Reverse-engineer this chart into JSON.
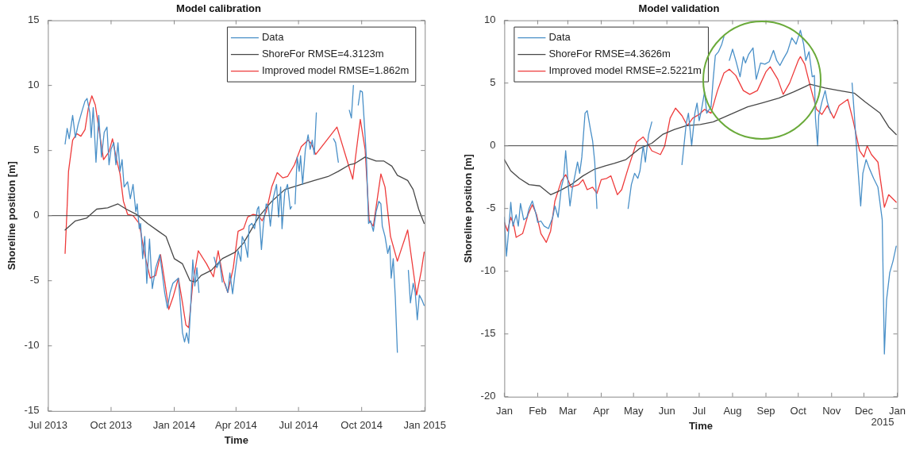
{
  "chart_data": [
    {
      "type": "line",
      "title": "Model calibration",
      "xlabel": "Time",
      "ylabel": "Shoreline position [m]",
      "xlim": [
        "2013-07-01",
        "2015-01-01"
      ],
      "xticks": [
        {
          "value": "2013-07-01",
          "label": "Jul 2013"
        },
        {
          "value": "2013-10-01",
          "label": "Oct 2013"
        },
        {
          "value": "2014-01-01",
          "label": "Jan 2014"
        },
        {
          "value": "2014-04-01",
          "label": "Apr 2014"
        },
        {
          "value": "2014-07-01",
          "label": "Jul 2014"
        },
        {
          "value": "2014-10-01",
          "label": "Oct 2014"
        },
        {
          "value": "2015-01-01",
          "label": "Jan 2015"
        }
      ],
      "ylim": [
        -15,
        15
      ],
      "yticks": [
        -15,
        -10,
        -5,
        0,
        5,
        10,
        15
      ],
      "legend": "top right",
      "ref_lines": [
        {
          "axis": "y",
          "value": 0,
          "color": "#404040"
        }
      ],
      "series": [
        {
          "name": "Data",
          "color": "#4a90c8",
          "x": [
            "2013-07-26",
            "2013-07-29",
            "2013-08-01",
            "2013-08-06",
            "2013-08-10",
            "2013-08-14",
            "2013-08-20",
            "2013-08-24",
            "2013-08-27",
            "2013-08-31",
            "2013-09-02",
            "2013-09-05",
            "2013-09-09",
            "2013-09-13",
            "2013-09-17",
            "2013-09-21",
            "2013-09-25",
            "2013-09-28",
            "2013-10-01",
            "2013-10-05",
            "2013-10-08",
            "2013-10-11",
            "2013-10-14",
            "2013-10-17",
            "2013-10-20",
            "2013-10-25",
            "2013-10-29",
            "2013-11-02",
            "2013-11-06",
            "2013-11-08",
            "2013-11-11",
            "2013-11-13",
            "2013-11-16",
            "2013-11-19",
            "2013-11-22",
            "2013-11-26",
            "2013-11-30",
            "2013-12-05",
            "2013-12-11",
            "2013-12-14",
            "2013-12-18",
            "2013-12-22",
            "2013-12-26",
            "2013-12-30",
            "2014-01-03",
            "2014-01-07",
            "2014-01-10",
            "2014-01-13",
            "2014-01-16",
            "2014-01-19",
            "2014-01-22",
            "2014-01-25",
            "2014-01-28",
            "2014-01-31",
            "2014-02-03",
            "2014-02-06",
            "2014-02-12",
            "2014-02-28",
            "2014-03-04",
            "2014-03-08",
            "2014-03-12",
            "2014-03-13",
            "2014-03-16",
            "2014-03-20",
            "2014-03-23",
            "2014-03-27",
            "2014-03-31",
            "2014-04-04",
            "2014-04-08",
            "2014-04-10",
            "2014-04-14",
            "2014-04-18",
            "2014-04-20",
            "2014-04-24",
            "2014-04-28",
            "2014-05-02",
            "2014-05-04",
            "2014-05-08",
            "2014-05-11",
            "2014-05-15",
            "2014-05-18",
            "2014-05-21",
            "2014-05-25",
            "2014-05-30",
            "2014-06-02",
            "2014-06-05",
            "2014-06-07",
            "2014-06-11",
            "2014-06-15",
            "2014-06-19",
            "2014-06-21",
            "2014-06-23",
            "2014-06-26",
            "2014-06-29",
            "2014-07-02",
            "2014-07-04",
            "2014-07-07",
            "2014-07-11",
            "2014-07-15",
            "2014-07-18",
            "2014-07-21",
            "2014-07-24",
            "2014-07-27",
            "2014-08-10",
            "2014-08-21",
            "2014-08-24",
            "2014-08-28",
            "2014-09-05",
            "2014-09-13",
            "2014-09-16",
            "2014-09-19",
            "2014-09-22",
            "2014-09-26",
            "2014-09-29",
            "2014-10-02",
            "2014-10-05",
            "2014-10-08",
            "2014-10-11",
            "2014-10-14",
            "2014-10-18",
            "2014-10-22",
            "2014-10-26",
            "2014-10-29",
            "2014-10-31",
            "2014-11-04",
            "2014-11-08",
            "2014-11-11",
            "2014-11-13",
            "2014-11-16",
            "2014-11-19",
            "2014-11-22",
            "2014-11-28",
            "2014-12-08",
            "2014-12-11",
            "2014-12-15",
            "2014-12-18",
            "2014-12-21",
            "2014-12-24",
            "2014-12-28",
            "2014-12-31"
          ],
          "values": [
            5.5,
            6.7,
            5.9,
            7.7,
            6.0,
            7.0,
            8.1,
            8.8,
            9.0,
            7.9,
            6.0,
            8.3,
            4.1,
            7.7,
            4.5,
            6.4,
            6.8,
            3.9,
            5.1,
            5.6,
            3.9,
            5.6,
            3.4,
            4.3,
            2.2,
            2.6,
            1.3,
            2.4,
            0.3,
            0.9,
            -1.0,
            -0.6,
            -3.3,
            -1.6,
            -5.2,
            -1.8,
            -5.6,
            -4.0,
            -3.0,
            -4.2,
            -5.9,
            -7.1,
            -5.9,
            -5.2,
            -5.0,
            -4.8,
            -6.9,
            -9.0,
            -9.7,
            -9.0,
            -9.8,
            -6.9,
            -3.4,
            -5.4,
            -4.0,
            -5.9,
            null,
            -3.2,
            -4.0,
            -3.5,
            -5.1,
            null,
            -5.2,
            -5.9,
            -4.4,
            -6.0,
            -4.2,
            -2.7,
            -3.5,
            -1.6,
            -2.1,
            -3.2,
            -0.8,
            -0.6,
            -1.0,
            0.5,
            0.7,
            -2.6,
            -0.6,
            0.9,
            0.7,
            -0.8,
            1.3,
            2.4,
            -0.1,
            2.2,
            -1.0,
            1.8,
            2.4,
            0.5,
            0.7,
            null,
            0.9,
            4.5,
            3.4,
            4.6,
            2.4,
            5.1,
            6.2,
            5.1,
            5.8,
            4.7,
            7.9,
            null,
            5.9,
            5.6,
            4.1,
            null,
            8.1,
            7.5,
            10.0,
            null,
            8.5,
            9.6,
            9.5,
            7.0,
            4.3,
            -0.6,
            -0.4,
            -1.2,
            0.3,
            1.1,
            0.9,
            -0.8,
            -1.6,
            -2.9,
            -2.3,
            -4.8,
            -3.3,
            -6.3,
            -10.5,
            null,
            -4.2,
            -6.7,
            -5.2,
            -5.9,
            -8.0,
            -6.1,
            -6.5,
            -6.9
          ]
        },
        {
          "name": "ShoreFor RMSE=4.3123m",
          "color": "#484848",
          "x": [
            "2013-07-26",
            "2013-08-10",
            "2013-08-26",
            "2013-09-10",
            "2013-09-26",
            "2013-10-11",
            "2013-10-23",
            "2013-11-07",
            "2013-11-23",
            "2013-12-09",
            "2013-12-20",
            "2014-01-01",
            "2014-01-13",
            "2014-01-24",
            "2014-02-01",
            "2014-02-09",
            "2014-02-24",
            "2014-03-12",
            "2014-03-31",
            "2014-04-12",
            "2014-05-04",
            "2014-05-23",
            "2014-06-11",
            "2014-07-05",
            "2014-07-24",
            "2014-08-13",
            "2014-08-28",
            "2014-09-13",
            "2014-09-21",
            "2014-10-06",
            "2014-10-22",
            "2014-11-02",
            "2014-11-14",
            "2014-11-22",
            "2014-12-07",
            "2014-12-15",
            "2014-12-23",
            "2014-12-31"
          ],
          "values": [
            -1.1,
            -0.4,
            -0.2,
            0.5,
            0.6,
            0.9,
            0.5,
            0.1,
            -0.6,
            -1.2,
            -1.6,
            -3.3,
            -3.7,
            -5.0,
            -5.1,
            -4.6,
            -4.2,
            -3.3,
            -2.8,
            -2.1,
            -0.1,
            1.1,
            2.0,
            2.4,
            2.7,
            3.0,
            3.4,
            3.9,
            4.0,
            4.5,
            4.2,
            4.2,
            3.8,
            3.1,
            2.7,
            2.0,
            0.5,
            -0.6
          ]
        },
        {
          "name": "Improved model RMSE=1.862m",
          "color": "#ee3b3b",
          "x": [
            "2013-07-26",
            "2013-07-29",
            "2013-07-31",
            "2013-08-06",
            "2013-08-12",
            "2013-08-18",
            "2013-08-24",
            "2013-08-29",
            "2013-09-03",
            "2013-09-08",
            "2013-09-14",
            "2013-09-20",
            "2013-09-28",
            "2013-10-03",
            "2013-10-09",
            "2013-10-14",
            "2013-10-19",
            "2013-10-25",
            "2013-11-02",
            "2013-11-11",
            "2013-11-19",
            "2013-11-27",
            "2013-12-05",
            "2013-12-12",
            "2013-12-18",
            "2013-12-24",
            "2013-12-30",
            "2014-01-07",
            "2014-01-13",
            "2014-01-18",
            "2014-01-22",
            "2014-01-28",
            "2014-02-05",
            "2014-02-17",
            "2014-02-27",
            "2014-03-06",
            "2014-03-14",
            "2014-03-20",
            "2014-03-28",
            "2014-04-04",
            "2014-04-12",
            "2014-04-18",
            "2014-04-26",
            "2014-05-04",
            "2014-05-09",
            "2014-05-15",
            "2014-05-23",
            "2014-05-31",
            "2014-06-08",
            "2014-06-15",
            "2014-06-25",
            "2014-07-05",
            "2014-07-15",
            "2014-07-20",
            "2014-07-26",
            "2014-08-26",
            "2014-09-18",
            "2014-09-29",
            "2014-10-06",
            "2014-10-12",
            "2014-10-18",
            "2014-10-29",
            "2014-11-04",
            "2014-11-12",
            "2014-11-22",
            "2014-12-07",
            "2014-12-20",
            "2014-12-27",
            "2014-12-31"
          ],
          "values": [
            -2.9,
            0.7,
            3.4,
            5.8,
            6.3,
            6.1,
            6.6,
            8.3,
            9.2,
            8.5,
            6.4,
            4.3,
            4.9,
            5.9,
            4.3,
            3.2,
            1.1,
            0.1,
            0,
            -0.6,
            -3.0,
            -4.8,
            -4.6,
            -3.0,
            -5.0,
            -7.2,
            -6.3,
            -4.8,
            -6.7,
            -8.4,
            -8.6,
            -5.2,
            -2.7,
            -3.7,
            -4.7,
            -2.7,
            -5.0,
            -5.9,
            -4.0,
            -1.2,
            -1.0,
            -0.1,
            0.1,
            0,
            -0.4,
            0.3,
            2.2,
            3.3,
            2.9,
            3.0,
            3.9,
            5.3,
            5.8,
            5.5,
            4.7,
            6.8,
            2.8,
            7.4,
            5.1,
            -0.4,
            -0.8,
            3.2,
            2.2,
            -1.6,
            -3.5,
            -1.1,
            -6.1,
            -4.2,
            -2.8
          ]
        }
      ]
    },
    {
      "type": "line",
      "title": "Model validation",
      "xlabel": "Time",
      "ylabel": "Shoreline position [m]",
      "xlim": [
        "2015-01-01",
        "2016-01-01"
      ],
      "xticks": [
        {
          "value": "2015-01-01",
          "label": "Jan"
        },
        {
          "value": "2015-02-01",
          "label": "Feb"
        },
        {
          "value": "2015-03-01",
          "label": "Mar"
        },
        {
          "value": "2015-04-01",
          "label": "Apr"
        },
        {
          "value": "2015-05-01",
          "label": "May"
        },
        {
          "value": "2015-06-01",
          "label": "Jun"
        },
        {
          "value": "2015-07-01",
          "label": "Jul"
        },
        {
          "value": "2015-08-01",
          "label": "Aug"
        },
        {
          "value": "2015-09-01",
          "label": "Sep"
        },
        {
          "value": "2015-10-01",
          "label": "Oct"
        },
        {
          "value": "2015-11-01",
          "label": "Nov"
        },
        {
          "value": "2015-12-01",
          "label": "Dec"
        },
        {
          "value": "2016-01-01",
          "label": "Jan"
        }
      ],
      "ylim": [
        -20,
        10
      ],
      "yticks": [
        -20,
        -15,
        -10,
        -5,
        0,
        5,
        10
      ],
      "legend": "top left",
      "annotations": [
        "2015"
      ],
      "ref_lines": [
        {
          "axis": "y",
          "value": 0,
          "color": "#404040"
        }
      ],
      "series": [
        {
          "name": "Data",
          "color": "#4a90c8",
          "x": [
            "2015-01-01",
            "2015-01-03",
            "2015-01-05",
            "2015-01-07",
            "2015-01-09",
            "2015-01-12",
            "2015-01-14",
            "2015-01-16",
            "2015-01-19",
            "2015-01-22",
            "2015-01-24",
            "2015-01-27",
            "2015-01-30",
            "2015-02-01",
            "2015-02-04",
            "2015-02-07",
            "2015-02-11",
            "2015-02-15",
            "2015-02-17",
            "2015-02-20",
            "2015-02-23",
            "2015-02-25",
            "2015-02-27",
            "2015-02-28",
            "2015-03-02",
            "2015-03-03",
            "2015-03-05",
            "2015-03-08",
            "2015-03-10",
            "2015-03-12",
            "2015-03-14",
            "2015-03-17",
            "2015-03-19",
            "2015-03-22",
            "2015-03-24",
            "2015-03-26",
            "2015-03-28",
            "2015-04-15",
            "2015-04-26",
            "2015-04-29",
            "2015-05-02",
            "2015-05-05",
            "2015-05-07",
            "2015-05-10",
            "2015-05-12",
            "2015-05-15",
            "2015-05-18",
            "2015-06-01",
            "2015-06-15",
            "2015-06-19",
            "2015-06-21",
            "2015-06-24",
            "2015-06-27",
            "2015-06-29",
            "2015-07-01",
            "2015-07-03",
            "2015-07-06",
            "2015-07-08",
            "2015-07-12",
            "2015-07-14",
            "2015-07-16",
            "2015-07-19",
            "2015-07-22",
            "2015-07-24",
            "2015-07-26",
            "2015-07-29",
            "2015-08-01",
            "2015-08-04",
            "2015-08-08",
            "2015-08-11",
            "2015-08-13",
            "2015-08-16",
            "2015-08-20",
            "2015-08-23",
            "2015-08-27",
            "2015-08-31",
            "2015-09-04",
            "2015-09-08",
            "2015-09-11",
            "2015-09-14",
            "2015-09-17",
            "2015-09-21",
            "2015-09-25",
            "2015-09-29",
            "2015-10-03",
            "2015-10-06",
            "2015-10-08",
            "2015-10-11",
            "2015-10-14",
            "2015-10-16",
            "2015-10-17",
            "2015-10-19",
            "2015-10-20",
            "2015-10-23",
            "2015-10-26",
            "2015-10-28",
            "2015-10-31",
            "2015-11-10",
            "2015-11-20",
            "2015-11-22",
            "2015-11-25",
            "2015-11-28",
            "2015-11-30",
            "2015-12-03",
            "2015-12-06",
            "2015-12-10",
            "2015-12-14",
            "2015-12-18",
            "2015-12-20",
            "2015-12-22",
            "2015-12-25",
            "2015-12-28",
            "2015-12-31"
          ],
          "values": [
            -5.7,
            -8.8,
            -6.8,
            -4.5,
            -6.4,
            -5.5,
            -6.4,
            -4.6,
            -5.9,
            -5.7,
            -5.0,
            -4.4,
            -5.3,
            -6.1,
            -6.0,
            -6.4,
            -6.6,
            -5.7,
            -4.8,
            -5.7,
            -3.3,
            -2.6,
            -0.4,
            -1.5,
            -3.9,
            -4.8,
            -3.5,
            -2.2,
            -1.3,
            -2.2,
            -0.9,
            2.6,
            2.8,
            1.3,
            0.4,
            -1.3,
            -5.0,
            null,
            -5.0,
            -3.1,
            -2.2,
            -2.6,
            -2.0,
            0,
            -1.3,
            0.9,
            1.9,
            null,
            -1.5,
            1.8,
            2.6,
            0,
            2.6,
            3.4,
            2.0,
            2.8,
            4.3,
            2.6,
            3.1,
            5.3,
            7.2,
            7.5,
            8.1,
            8.7,
            null,
            6.8,
            7.7,
            6.8,
            5.5,
            7.1,
            6.6,
            7.3,
            7.8,
            5.3,
            6.6,
            6.5,
            6.7,
            7.6,
            6.8,
            6.4,
            6.9,
            7.5,
            8.6,
            8.1,
            9.2,
            8.1,
            6.8,
            7.5,
            5.5,
            5.6,
            2.2,
            0,
            2.4,
            3.5,
            4.4,
            3.5,
            2.6,
            null,
            5.0,
            2.6,
            -1.3,
            -4.8,
            -2.2,
            -1.1,
            -1.8,
            -2.6,
            -3.3,
            -5.9,
            -16.6,
            -12.3,
            -10.1,
            -9.2,
            -8.0
          ]
        },
        {
          "name": "ShoreFor RMSE=4.3626m",
          "color": "#484848",
          "x": [
            "2015-01-01",
            "2015-01-07",
            "2015-01-15",
            "2015-01-24",
            "2015-02-03",
            "2015-02-13",
            "2015-02-21",
            "2015-03-04",
            "2015-03-15",
            "2015-03-25",
            "2015-04-05",
            "2015-04-13",
            "2015-04-24",
            "2015-05-07",
            "2015-05-18",
            "2015-05-28",
            "2015-06-08",
            "2015-06-19",
            "2015-07-02",
            "2015-07-14",
            "2015-07-30",
            "2015-08-15",
            "2015-08-28",
            "2015-09-13",
            "2015-09-27",
            "2015-10-12",
            "2015-10-26",
            "2015-11-08",
            "2015-11-22",
            "2015-12-02",
            "2015-12-16",
            "2015-12-24",
            "2015-12-31"
          ],
          "values": [
            -1.1,
            -2.0,
            -2.6,
            -3.1,
            -3.2,
            -3.9,
            -3.6,
            -3.1,
            -2.4,
            -1.9,
            -1.6,
            -1.4,
            -1.1,
            -0.2,
            0.2,
            0.9,
            1.3,
            1.6,
            1.7,
            1.9,
            2.5,
            3.1,
            3.4,
            3.8,
            4.3,
            4.9,
            4.6,
            4.4,
            4.2,
            3.5,
            2.6,
            1.5,
            0.9
          ]
        },
        {
          "name": "Improved model RMSE=2.5221m",
          "color": "#ee3b3b",
          "x": [
            "2015-01-01",
            "2015-01-04",
            "2015-01-07",
            "2015-01-10",
            "2015-01-12",
            "2015-01-18",
            "2015-01-23",
            "2015-01-27",
            "2015-01-31",
            "2015-02-04",
            "2015-02-09",
            "2015-02-13",
            "2015-02-17",
            "2015-02-23",
            "2015-02-27",
            "2015-03-04",
            "2015-03-11",
            "2015-03-15",
            "2015-03-19",
            "2015-03-24",
            "2015-03-28",
            "2015-04-01",
            "2015-04-06",
            "2015-04-10",
            "2015-04-16",
            "2015-04-20",
            "2015-04-26",
            "2015-05-04",
            "2015-05-10",
            "2015-05-14",
            "2015-05-18",
            "2015-05-26",
            "2015-05-30",
            "2015-06-04",
            "2015-06-09",
            "2015-06-15",
            "2015-06-20",
            "2015-06-25",
            "2015-07-01",
            "2015-07-06",
            "2015-07-12",
            "2015-07-18",
            "2015-07-24",
            "2015-07-29",
            "2015-08-04",
            "2015-08-11",
            "2015-08-17",
            "2015-08-24",
            "2015-09-01",
            "2015-09-05",
            "2015-09-12",
            "2015-09-17",
            "2015-09-23",
            "2015-10-01",
            "2015-10-03",
            "2015-10-07",
            "2015-10-12",
            "2015-10-18",
            "2015-10-23",
            "2015-10-28",
            "2015-11-03",
            "2015-11-08",
            "2015-11-16",
            "2015-11-21",
            "2015-11-27",
            "2015-12-01",
            "2015-12-04",
            "2015-12-08",
            "2015-12-14",
            "2015-12-18",
            "2015-12-20",
            "2015-12-24",
            "2015-12-31"
          ],
          "values": [
            -6.1,
            -6.8,
            -5.7,
            -6.4,
            -7.3,
            -7.0,
            -5.5,
            -4.7,
            -5.5,
            -7.0,
            -7.7,
            -6.8,
            -4.4,
            -2.8,
            -2.3,
            -3.3,
            -3.1,
            -2.7,
            -3.5,
            -3.3,
            -3.8,
            -2.7,
            -2.6,
            -2.4,
            -3.9,
            -3.5,
            -1.8,
            0.3,
            0.7,
            0.2,
            -0.4,
            -0.7,
            0,
            2.2,
            3.0,
            2.4,
            1.6,
            2.2,
            2.5,
            2.9,
            2.6,
            4.4,
            5.8,
            6.1,
            5.6,
            4.4,
            4.1,
            4.4,
            5.9,
            6.3,
            5.3,
            4.1,
            5.0,
            6.8,
            7.1,
            6.5,
            4.8,
            2.9,
            2.5,
            3.2,
            2.2,
            3.2,
            3.7,
            2.0,
            -0.4,
            -0.9,
            0,
            -0.7,
            -1.3,
            -3.7,
            -4.9,
            -3.9,
            -4.5
          ]
        }
      ]
    }
  ]
}
